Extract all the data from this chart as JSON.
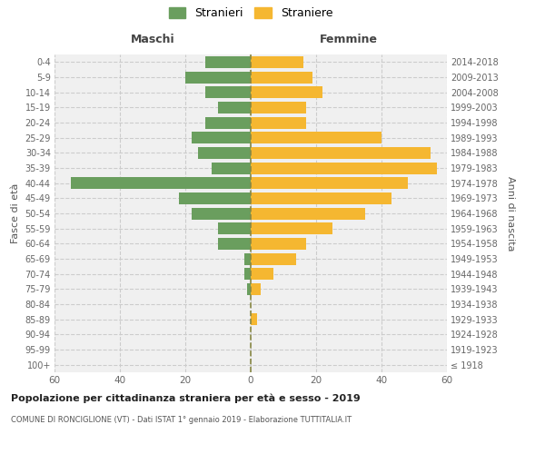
{
  "age_groups": [
    "100+",
    "95-99",
    "90-94",
    "85-89",
    "80-84",
    "75-79",
    "70-74",
    "65-69",
    "60-64",
    "55-59",
    "50-54",
    "45-49",
    "40-44",
    "35-39",
    "30-34",
    "25-29",
    "20-24",
    "15-19",
    "10-14",
    "5-9",
    "0-4"
  ],
  "birth_years": [
    "≤ 1918",
    "1919-1923",
    "1924-1928",
    "1929-1933",
    "1934-1938",
    "1939-1943",
    "1944-1948",
    "1949-1953",
    "1954-1958",
    "1959-1963",
    "1964-1968",
    "1969-1973",
    "1974-1978",
    "1979-1983",
    "1984-1988",
    "1989-1993",
    "1994-1998",
    "1999-2003",
    "2004-2008",
    "2009-2013",
    "2014-2018"
  ],
  "males": [
    0,
    0,
    0,
    0,
    0,
    1,
    2,
    2,
    10,
    10,
    18,
    22,
    55,
    12,
    16,
    18,
    14,
    10,
    14,
    20,
    14
  ],
  "females": [
    0,
    0,
    0,
    2,
    0,
    3,
    7,
    14,
    17,
    25,
    35,
    43,
    48,
    57,
    55,
    40,
    17,
    17,
    22,
    19,
    16
  ],
  "male_color": "#6a9e5e",
  "female_color": "#f5b731",
  "male_label": "Stranieri",
  "female_label": "Straniere",
  "title": "Popolazione per cittadinanza straniera per età e sesso - 2019",
  "subtitle": "COMUNE DI RONCIGLIONE (VT) - Dati ISTAT 1° gennaio 2019 - Elaborazione TUTTITALIA.IT",
  "xlabel_left": "Maschi",
  "xlabel_right": "Femmine",
  "ylabel_left": "Fasce di età",
  "ylabel_right": "Anni di nascita",
  "xlim": 60,
  "background_color": "#f0f0f0",
  "grid_color": "#cccccc"
}
